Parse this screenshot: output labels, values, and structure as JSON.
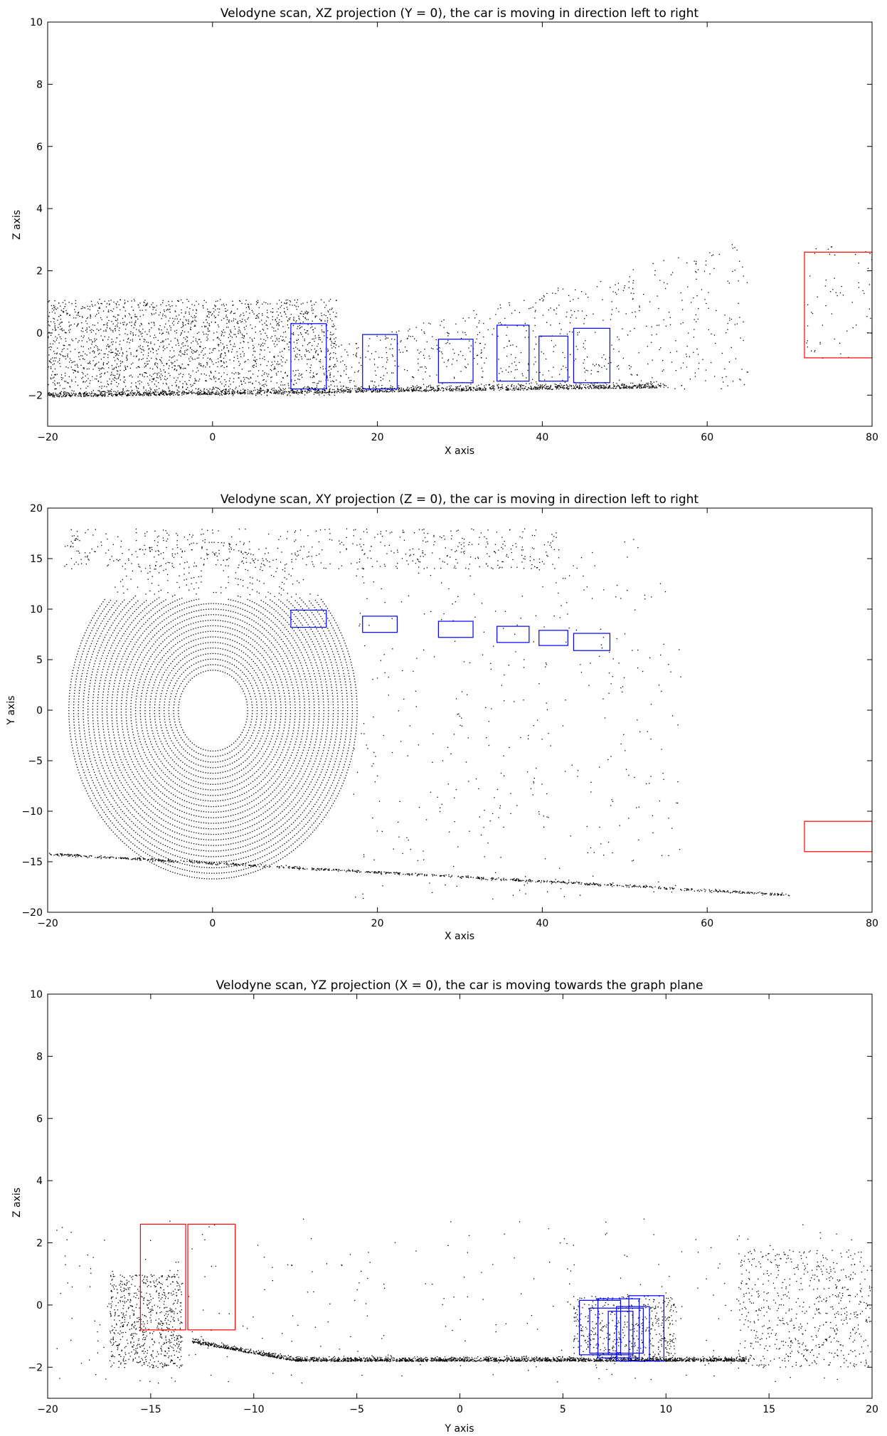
{
  "chart_data": [
    {
      "type": "scatter",
      "title": "Velodyne scan, XZ projection (Y = 0), the car is moving in direction left to right",
      "xlabel": "X axis",
      "ylabel": "Z axis",
      "xlim": [
        -20,
        80
      ],
      "ylim": [
        -3,
        10
      ],
      "xticks": [
        -20,
        0,
        20,
        40,
        60,
        80
      ],
      "yticks": [
        -2,
        0,
        2,
        4,
        6,
        8,
        10
      ],
      "grid": false,
      "point_color": "#000000",
      "boxes": [
        {
          "color": "#0000ff",
          "x": [
            9.5,
            13.8
          ],
          "y": [
            -1.8,
            0.3
          ]
        },
        {
          "color": "#0000ff",
          "x": [
            18.2,
            22.4
          ],
          "y": [
            -1.8,
            -0.05
          ]
        },
        {
          "color": "#0000ff",
          "x": [
            27.4,
            31.6
          ],
          "y": [
            -1.6,
            -0.2
          ]
        },
        {
          "color": "#0000ff",
          "x": [
            34.5,
            38.4
          ],
          "y": [
            -1.55,
            0.25
          ]
        },
        {
          "color": "#0000ff",
          "x": [
            39.6,
            43.1
          ],
          "y": [
            -1.55,
            -0.1
          ]
        },
        {
          "color": "#0000ff",
          "x": [
            43.8,
            48.2
          ],
          "y": [
            -1.6,
            0.15
          ]
        },
        {
          "color": "#ff0000",
          "x": [
            71.8,
            80
          ],
          "y": [
            -0.8,
            2.6
          ]
        }
      ]
    },
    {
      "type": "scatter",
      "title": "Velodyne scan, XY projection (Z = 0), the car is moving in direction left to right",
      "xlabel": "X axis",
      "ylabel": "Y axis",
      "xlim": [
        -20,
        80
      ],
      "ylim": [
        -20,
        20
      ],
      "xticks": [
        -20,
        0,
        20,
        40,
        60,
        80
      ],
      "yticks": [
        -20,
        -15,
        -10,
        -5,
        0,
        5,
        10,
        15,
        20
      ],
      "grid": false,
      "point_color": "#000000",
      "boxes": [
        {
          "color": "#0000ff",
          "x": [
            9.5,
            13.8
          ],
          "y": [
            8.2,
            9.9
          ]
        },
        {
          "color": "#0000ff",
          "x": [
            18.2,
            22.4
          ],
          "y": [
            7.7,
            9.3
          ]
        },
        {
          "color": "#0000ff",
          "x": [
            27.4,
            31.6
          ],
          "y": [
            7.2,
            8.8
          ]
        },
        {
          "color": "#0000ff",
          "x": [
            34.5,
            38.4
          ],
          "y": [
            6.7,
            8.3
          ]
        },
        {
          "color": "#0000ff",
          "x": [
            39.6,
            43.1
          ],
          "y": [
            6.4,
            7.9
          ]
        },
        {
          "color": "#0000ff",
          "x": [
            43.8,
            48.2
          ],
          "y": [
            5.9,
            7.6
          ]
        },
        {
          "color": "#ff0000",
          "x": [
            71.8,
            80
          ],
          "y": [
            -14.0,
            -11.0
          ]
        }
      ]
    },
    {
      "type": "scatter",
      "title": "Velodyne scan, YZ projection (X = 0), the car is moving towards the graph plane",
      "xlabel": "Y axis",
      "ylabel": "Z axis",
      "xlim": [
        -20,
        20
      ],
      "ylim": [
        -3,
        10
      ],
      "xticks": [
        -20,
        -15,
        -10,
        -5,
        0,
        5,
        10,
        15,
        20
      ],
      "yticks": [
        -2,
        0,
        2,
        4,
        6,
        8,
        10
      ],
      "grid": false,
      "point_color": "#000000",
      "boxes": [
        {
          "color": "#ff0000",
          "x": [
            -15.5,
            -13.3
          ],
          "y": [
            -0.8,
            2.6
          ]
        },
        {
          "color": "#ff0000",
          "x": [
            -13.2,
            -10.9
          ],
          "y": [
            -0.8,
            2.6
          ]
        },
        {
          "color": "#0000ff",
          "x": [
            5.8,
            7.8
          ],
          "y": [
            -1.6,
            0.15
          ]
        },
        {
          "color": "#0000ff",
          "x": [
            6.7,
            8.7
          ],
          "y": [
            -1.7,
            0.2
          ]
        },
        {
          "color": "#0000ff",
          "x": [
            6.3,
            8.9
          ],
          "y": [
            -1.55,
            -0.1
          ]
        },
        {
          "color": "#0000ff",
          "x": [
            7.6,
            9.2
          ],
          "y": [
            -1.8,
            -0.05
          ]
        },
        {
          "color": "#0000ff",
          "x": [
            8.2,
            9.9
          ],
          "y": [
            -1.8,
            0.3
          ]
        },
        {
          "color": "#0000ff",
          "x": [
            7.2,
            8.4
          ],
          "y": [
            -1.6,
            -0.2
          ]
        }
      ]
    }
  ]
}
